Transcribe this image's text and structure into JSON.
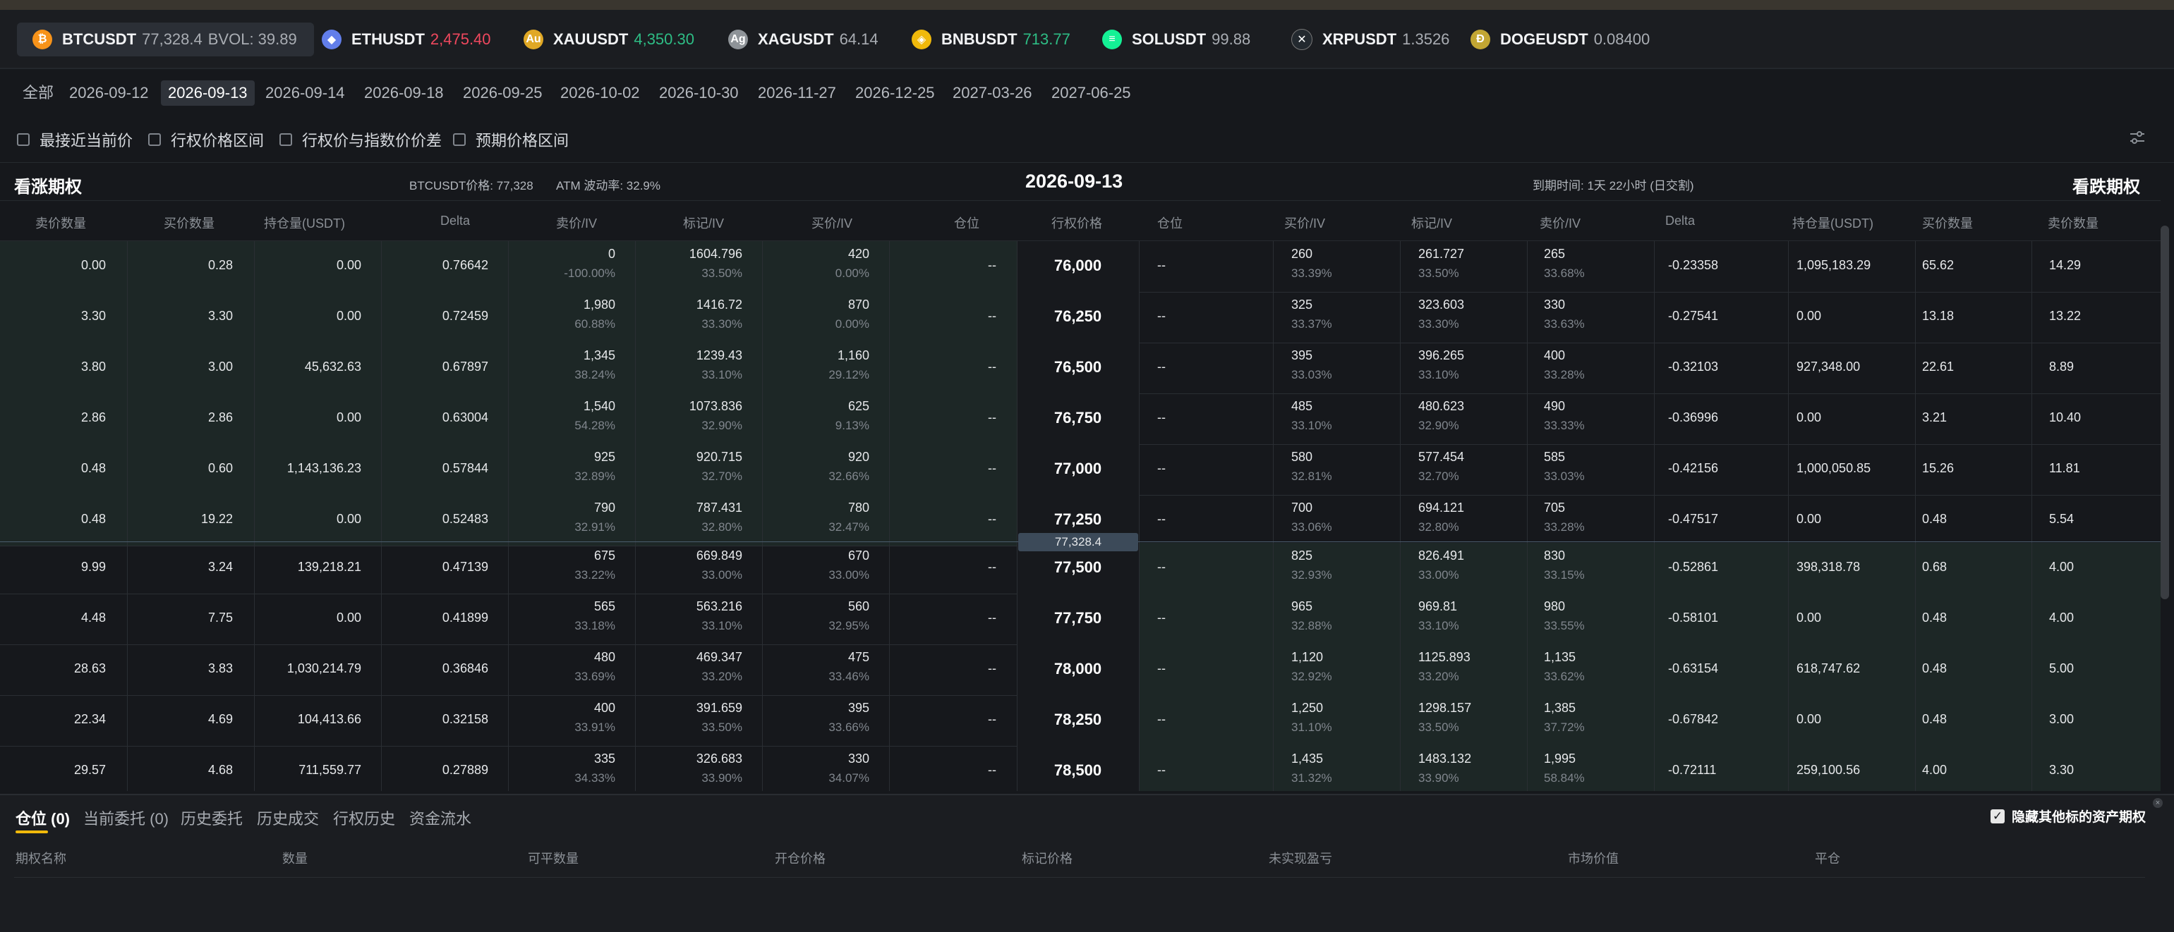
{
  "tickers": [
    {
      "symbol": "BTCUSDT",
      "price": "77,328.4",
      "extra": "BVOL: 39.89",
      "color": "neutral",
      "icon": "bitcoin-icon",
      "icon_glyph": "₿",
      "icon_color": "#f7931a"
    },
    {
      "symbol": "ETHUSDT",
      "price": "2,475.40",
      "extra": "",
      "color": "red",
      "icon": "ethereum-icon",
      "icon_glyph": "◆",
      "icon_color": "#627eea"
    },
    {
      "symbol": "XAUUSDT",
      "price": "4,350.30",
      "extra": "",
      "color": "green",
      "icon": "gold-icon",
      "icon_glyph": "Au",
      "icon_color": "#e0a825"
    },
    {
      "symbol": "XAGUSDT",
      "price": "64.14",
      "extra": "",
      "color": "neutral",
      "icon": "silver-icon",
      "icon_glyph": "Ag",
      "icon_color": "#8e9398"
    },
    {
      "symbol": "BNBUSDT",
      "price": "713.77",
      "extra": "",
      "color": "green",
      "icon": "bnb-icon",
      "icon_glyph": "◈",
      "icon_color": "#f0b90b"
    },
    {
      "symbol": "SOLUSDT",
      "price": "99.88",
      "extra": "",
      "color": "neutral",
      "icon": "solana-icon",
      "icon_glyph": "≡",
      "icon_color": "#14f195"
    },
    {
      "symbol": "XRPUSDT",
      "price": "1.3526",
      "extra": "",
      "color": "neutral",
      "icon": "xrp-icon",
      "icon_glyph": "✕",
      "icon_color": "#23292f"
    },
    {
      "symbol": "DOGEUSDT",
      "price": "0.08400",
      "extra": "",
      "color": "neutral",
      "icon": "dogecoin-icon",
      "icon_glyph": "Ð",
      "icon_color": "#c2a633"
    }
  ],
  "dates": [
    "全部",
    "2026-09-12",
    "2026-09-13",
    "2026-09-14",
    "2026-09-18",
    "2026-09-25",
    "2026-10-02",
    "2026-10-30",
    "2026-11-27",
    "2026-12-25",
    "2027-03-26",
    "2027-06-25"
  ],
  "active_date_index": 2,
  "filters": [
    "最接近当前价",
    "行权价格区间",
    "行权价与指数价价差",
    "预期价格区间"
  ],
  "header": {
    "calls_title": "看涨期权",
    "puts_title": "看跌期权",
    "index_price": "BTCUSDT价格: 77,328",
    "atm_vol": "ATM 波动率: 32.9%",
    "expiry": "2026-09-13",
    "time_to_expiry": "到期时间: 1天 22小时 (日交割)"
  },
  "columns": {
    "call": [
      "卖价数量",
      "买价数量",
      "持仓量(USDT)",
      "Delta",
      "卖价/IV",
      "标记/IV",
      "买价/IV",
      "仓位"
    ],
    "strike": "行权价格",
    "put": [
      "仓位",
      "买价/IV",
      "标记/IV",
      "卖价/IV",
      "Delta",
      "持仓量(USDT)",
      "买价数量",
      "卖价数量"
    ]
  },
  "spot_badge": "77,328.4",
  "colors": {
    "bid": "#2ebd85",
    "ask": "#f0485e",
    "accent": "#f0b90b",
    "itm_bg": "#1d2726"
  },
  "rows": [
    {
      "strike": "76,000",
      "c": {
        "askQty": "0.00",
        "bidQty": "0.28",
        "oi": "0.00",
        "delta": "0.76642",
        "ask": "0",
        "askIv": "-100.00%",
        "mark": "1604.796",
        "markIv": "33.50%",
        "bid": "420",
        "bidIv": "0.00%",
        "pos": "--"
      },
      "p": {
        "pos": "--",
        "bid": "260",
        "bidIv": "33.39%",
        "mark": "261.727",
        "markIv": "33.50%",
        "ask": "265",
        "askIv": "33.68%",
        "delta": "-0.23358",
        "oi": "1,095,183.29",
        "bidQty": "65.62",
        "askQty": "14.29"
      }
    },
    {
      "strike": "76,250",
      "c": {
        "askQty": "3.30",
        "bidQty": "3.30",
        "oi": "0.00",
        "delta": "0.72459",
        "ask": "1,980",
        "askIv": "60.88%",
        "mark": "1416.72",
        "markIv": "33.30%",
        "bid": "870",
        "bidIv": "0.00%",
        "pos": "--"
      },
      "p": {
        "pos": "--",
        "bid": "325",
        "bidIv": "33.37%",
        "mark": "323.603",
        "markIv": "33.30%",
        "ask": "330",
        "askIv": "33.63%",
        "delta": "-0.27541",
        "oi": "0.00",
        "bidQty": "13.18",
        "askQty": "13.22"
      }
    },
    {
      "strike": "76,500",
      "c": {
        "askQty": "3.80",
        "bidQty": "3.00",
        "oi": "45,632.63",
        "delta": "0.67897",
        "ask": "1,345",
        "askIv": "38.24%",
        "mark": "1239.43",
        "markIv": "33.10%",
        "bid": "1,160",
        "bidIv": "29.12%",
        "pos": "--"
      },
      "p": {
        "pos": "--",
        "bid": "395",
        "bidIv": "33.03%",
        "mark": "396.265",
        "markIv": "33.10%",
        "ask": "400",
        "askIv": "33.28%",
        "delta": "-0.32103",
        "oi": "927,348.00",
        "bidQty": "22.61",
        "askQty": "8.89"
      }
    },
    {
      "strike": "76,750",
      "c": {
        "askQty": "2.86",
        "bidQty": "2.86",
        "oi": "0.00",
        "delta": "0.63004",
        "ask": "1,540",
        "askIv": "54.28%",
        "mark": "1073.836",
        "markIv": "32.90%",
        "bid": "625",
        "bidIv": "9.13%",
        "pos": "--"
      },
      "p": {
        "pos": "--",
        "bid": "485",
        "bidIv": "33.10%",
        "mark": "480.623",
        "markIv": "32.90%",
        "ask": "490",
        "askIv": "33.33%",
        "delta": "-0.36996",
        "oi": "0.00",
        "bidQty": "3.21",
        "askQty": "10.40"
      }
    },
    {
      "strike": "77,000",
      "c": {
        "askQty": "0.48",
        "bidQty": "0.60",
        "oi": "1,143,136.23",
        "delta": "0.57844",
        "ask": "925",
        "askIv": "32.89%",
        "mark": "920.715",
        "markIv": "32.70%",
        "bid": "920",
        "bidIv": "32.66%",
        "pos": "--"
      },
      "p": {
        "pos": "--",
        "bid": "580",
        "bidIv": "32.81%",
        "mark": "577.454",
        "markIv": "32.70%",
        "ask": "585",
        "askIv": "33.03%",
        "delta": "-0.42156",
        "oi": "1,000,050.85",
        "bidQty": "15.26",
        "askQty": "11.81"
      }
    },
    {
      "strike": "77,250",
      "c": {
        "askQty": "0.48",
        "bidQty": "19.22",
        "oi": "0.00",
        "delta": "0.52483",
        "ask": "790",
        "askIv": "32.91%",
        "mark": "787.431",
        "markIv": "32.80%",
        "bid": "780",
        "bidIv": "32.47%",
        "pos": "--"
      },
      "p": {
        "pos": "--",
        "bid": "700",
        "bidIv": "33.06%",
        "mark": "694.121",
        "markIv": "32.80%",
        "ask": "705",
        "askIv": "33.28%",
        "delta": "-0.47517",
        "oi": "0.00",
        "bidQty": "0.48",
        "askQty": "5.54"
      }
    },
    {
      "strike": "77,500",
      "c": {
        "askQty": "9.99",
        "bidQty": "3.24",
        "oi": "139,218.21",
        "delta": "0.47139",
        "ask": "675",
        "askIv": "33.22%",
        "mark": "669.849",
        "markIv": "33.00%",
        "bid": "670",
        "bidIv": "33.00%",
        "pos": "--"
      },
      "p": {
        "pos": "--",
        "bid": "825",
        "bidIv": "32.93%",
        "mark": "826.491",
        "markIv": "33.00%",
        "ask": "830",
        "askIv": "33.15%",
        "delta": "-0.52861",
        "oi": "398,318.78",
        "bidQty": "0.68",
        "askQty": "4.00"
      }
    },
    {
      "strike": "77,750",
      "c": {
        "askQty": "4.48",
        "bidQty": "7.75",
        "oi": "0.00",
        "delta": "0.41899",
        "ask": "565",
        "askIv": "33.18%",
        "mark": "563.216",
        "markIv": "33.10%",
        "bid": "560",
        "bidIv": "32.95%",
        "pos": "--"
      },
      "p": {
        "pos": "--",
        "bid": "965",
        "bidIv": "32.88%",
        "mark": "969.81",
        "markIv": "33.10%",
        "ask": "980",
        "askIv": "33.55%",
        "delta": "-0.58101",
        "oi": "0.00",
        "bidQty": "0.48",
        "askQty": "4.00"
      }
    },
    {
      "strike": "78,000",
      "c": {
        "askQty": "28.63",
        "bidQty": "3.83",
        "oi": "1,030,214.79",
        "delta": "0.36846",
        "ask": "480",
        "askIv": "33.69%",
        "mark": "469.347",
        "markIv": "33.20%",
        "bid": "475",
        "bidIv": "33.46%",
        "pos": "--"
      },
      "p": {
        "pos": "--",
        "bid": "1,120",
        "bidIv": "32.92%",
        "mark": "1125.893",
        "markIv": "33.20%",
        "ask": "1,135",
        "askIv": "33.62%",
        "delta": "-0.63154",
        "oi": "618,747.62",
        "bidQty": "0.48",
        "askQty": "5.00"
      }
    },
    {
      "strike": "78,250",
      "c": {
        "askQty": "22.34",
        "bidQty": "4.69",
        "oi": "104,413.66",
        "delta": "0.32158",
        "ask": "400",
        "askIv": "33.91%",
        "mark": "391.659",
        "markIv": "33.50%",
        "bid": "395",
        "bidIv": "33.66%",
        "pos": "--"
      },
      "p": {
        "pos": "--",
        "bid": "1,250",
        "bidIv": "31.10%",
        "mark": "1298.157",
        "markIv": "33.50%",
        "ask": "1,385",
        "askIv": "37.72%",
        "delta": "-0.67842",
        "oi": "0.00",
        "bidQty": "0.48",
        "askQty": "3.00"
      }
    },
    {
      "strike": "78,500",
      "c": {
        "askQty": "29.57",
        "bidQty": "4.68",
        "oi": "711,559.77",
        "delta": "0.27889",
        "ask": "335",
        "askIv": "34.33%",
        "mark": "326.683",
        "markIv": "33.90%",
        "bid": "330",
        "bidIv": "34.07%",
        "pos": "--"
      },
      "p": {
        "pos": "--",
        "bid": "1,435",
        "bidIv": "31.32%",
        "mark": "1483.132",
        "markIv": "33.90%",
        "ask": "1,995",
        "askIv": "58.84%",
        "delta": "-0.72111",
        "oi": "259,100.56",
        "bidQty": "4.00",
        "askQty": "3.30"
      }
    }
  ],
  "bottom": {
    "tabs": [
      "仓位 (0)",
      "当前委托 (0)",
      "历史委托",
      "历史成交",
      "行权历史",
      "资金流水"
    ],
    "hide_label": "隐藏其他标的资产期权",
    "columns": [
      "期权名称",
      "数量",
      "可平数量",
      "开仓价格",
      "标记价格",
      "未实现盈亏",
      "市场价值",
      "平仓"
    ]
  }
}
